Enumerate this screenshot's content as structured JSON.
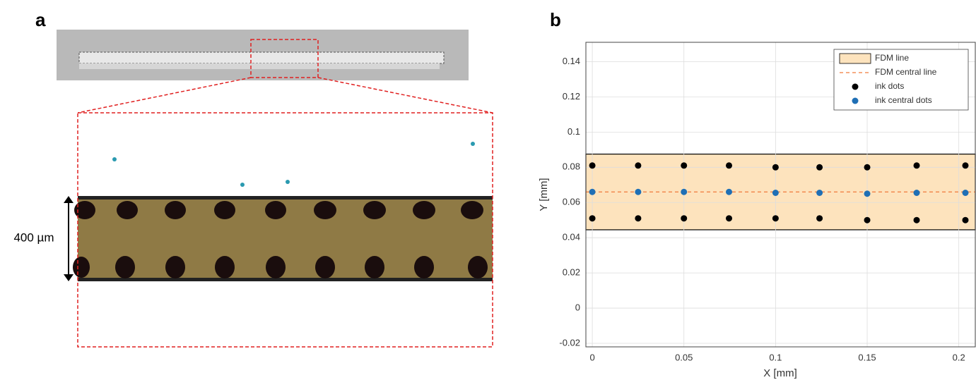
{
  "panel_a": {
    "label": "a",
    "scale_label": "400 µm"
  },
  "chart_data": {
    "type": "scatter",
    "panel_label": "b",
    "xlabel": "X [mm]",
    "ylabel": "Y [mm]",
    "xlim": [
      -0.0035,
      0.209
    ],
    "ylim": [
      -0.022,
      0.151
    ],
    "xticks": [
      0,
      0.05,
      0.1,
      0.15,
      0.2
    ],
    "yticks": [
      -0.02,
      0,
      0.02,
      0.04,
      0.06,
      0.08,
      0.1,
      0.12,
      0.14
    ],
    "grid": true,
    "legend": "upper right",
    "series": [
      {
        "name": "FDM line",
        "type": "band",
        "color": "#fde3bd",
        "range": [
          0.0445,
          0.0875
        ]
      },
      {
        "name": "FDM central line",
        "type": "hline",
        "color": "#f07a3a",
        "value": 0.066
      },
      {
        "name": "ink dots",
        "type": "scatter",
        "color": "#000000",
        "x": [
          0,
          0.025,
          0.05,
          0.0746,
          0.1,
          0.124,
          0.15,
          0.177,
          0.2036,
          0,
          0.025,
          0.05,
          0.0746,
          0.1,
          0.124,
          0.15,
          0.177,
          0.2036
        ],
        "values": [
          0.081,
          0.081,
          0.081,
          0.081,
          0.08,
          0.08,
          0.08,
          0.081,
          0.081,
          0.051,
          0.051,
          0.051,
          0.051,
          0.051,
          0.051,
          0.05,
          0.05,
          0.05
        ]
      },
      {
        "name": "ink central dots",
        "type": "scatter",
        "color": "#1f6fb5",
        "x": [
          0,
          0.025,
          0.05,
          0.0746,
          0.1,
          0.124,
          0.15,
          0.177,
          0.2036
        ],
        "values": [
          0.066,
          0.066,
          0.066,
          0.066,
          0.0655,
          0.0655,
          0.065,
          0.0655,
          0.0655
        ]
      }
    ]
  }
}
